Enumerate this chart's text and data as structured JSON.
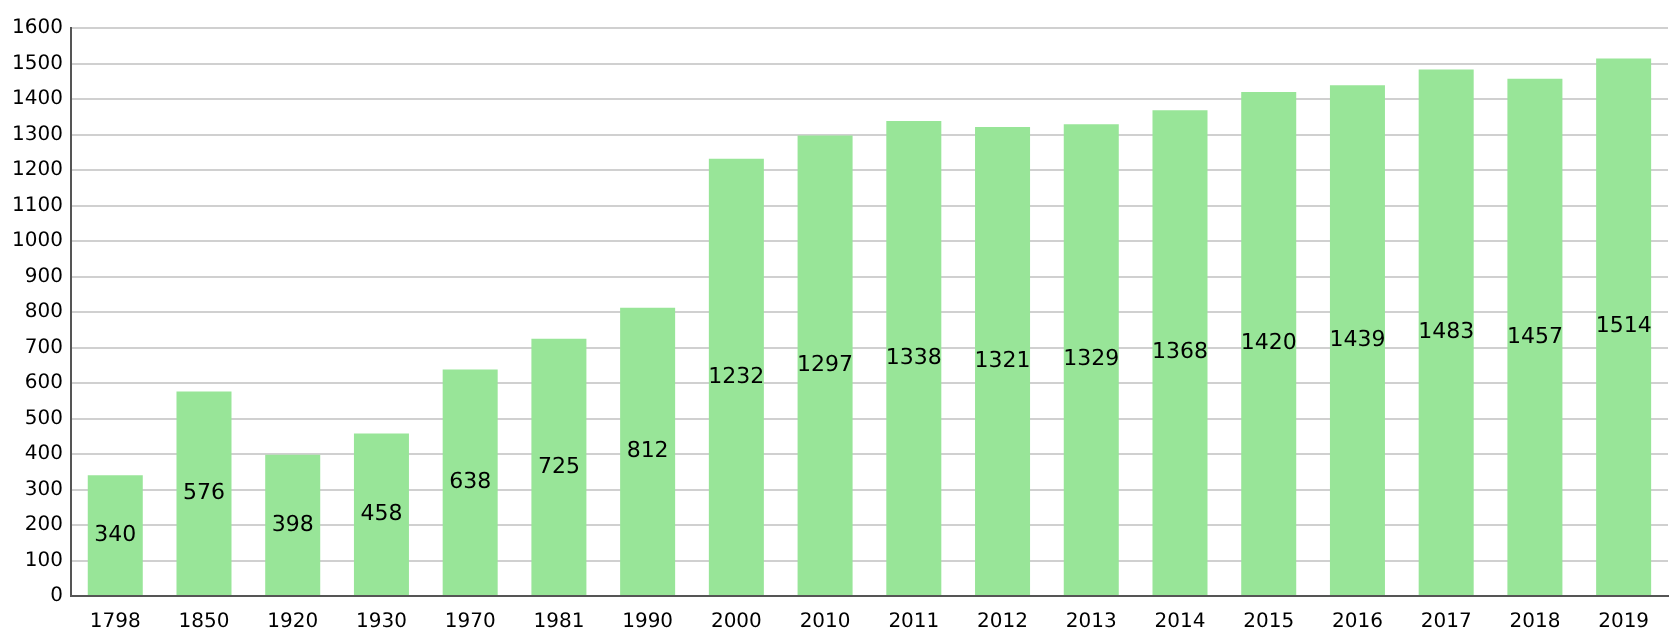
{
  "chart_data": {
    "type": "bar",
    "categories": [
      "1798",
      "1850",
      "1920",
      "1930",
      "1970",
      "1981",
      "1990",
      "2000",
      "2010",
      "2011",
      "2012",
      "2013",
      "2014",
      "2015",
      "2016",
      "2017",
      "2018",
      "2019"
    ],
    "values": [
      340,
      576,
      398,
      458,
      638,
      725,
      812,
      1232,
      1297,
      1338,
      1321,
      1329,
      1368,
      1420,
      1439,
      1483,
      1457,
      1514
    ],
    "color": "#98e598",
    "ylim": [
      0,
      1600
    ],
    "yticks": [
      0,
      100,
      200,
      300,
      400,
      500,
      600,
      700,
      800,
      900,
      1000,
      1100,
      1200,
      1300,
      1400,
      1500,
      1600
    ],
    "grid": "y",
    "data_labels": true
  }
}
